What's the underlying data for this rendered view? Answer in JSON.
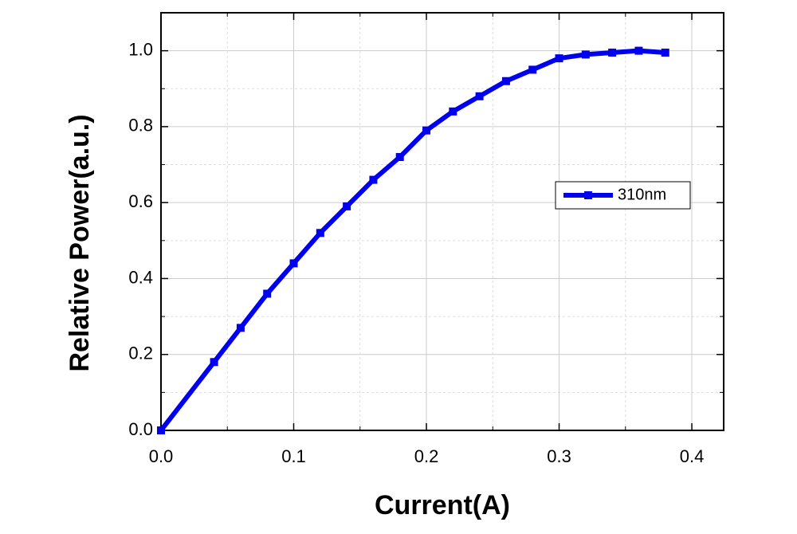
{
  "chart_data": {
    "type": "line",
    "x_label": "Current(A)",
    "y_label": "Relative Power(a.u.)",
    "x": [
      0,
      0.04,
      0.06,
      0.08,
      0.1,
      0.12,
      0.14,
      0.16,
      0.18,
      0.2,
      0.22,
      0.24,
      0.26,
      0.28,
      0.3,
      0.32,
      0.34,
      0.36,
      0.38
    ],
    "series": [
      {
        "name": "310nm",
        "color": "#0000ee",
        "values": [
          0,
          0.18,
          0.27,
          0.36,
          0.44,
          0.52,
          0.59,
          0.66,
          0.72,
          0.79,
          0.84,
          0.88,
          0.92,
          0.95,
          0.98,
          0.99,
          0.995,
          1.0,
          0.995
        ]
      }
    ],
    "xlim": [
      0,
      0.424
    ],
    "ylim": [
      0,
      1.1
    ],
    "xticks": [
      {
        "value": 0,
        "label": "0.0"
      },
      0.1,
      0.2,
      0.3,
      0.4
    ],
    "yticks": [
      {
        "value": 0,
        "label": "0.0"
      },
      0.2,
      0.4,
      0.6,
      0.8,
      {
        "value": 1,
        "label": "1.0"
      }
    ],
    "xminorticks": [
      0.05,
      0.15,
      0.25,
      0.35
    ],
    "yminorticks": [
      0.1,
      0.3,
      0.5,
      0.7,
      0.9
    ],
    "grid": true,
    "legend": "right"
  }
}
